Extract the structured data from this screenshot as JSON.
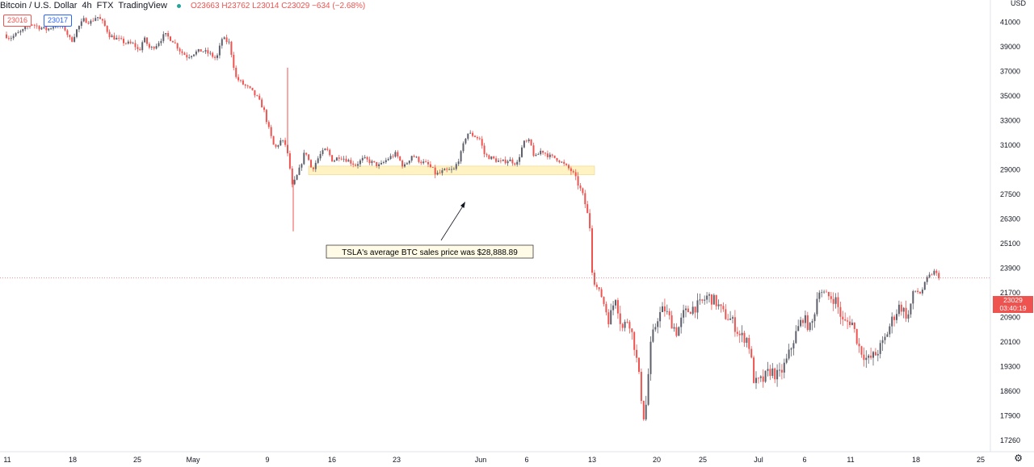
{
  "header": {
    "symbol": "Bitcoin / U.S. Dollar",
    "interval": "4h",
    "exchange": "FTX",
    "source": "TradingView",
    "ohlc": "O23663  H23762  L23014  C23029  −634 (−2.68%)",
    "sell_price": "23016",
    "buy_price": "23017"
  },
  "price_axis": {
    "currency": "USD",
    "last_price": "23029",
    "countdown": "03:40:19",
    "settings_icon": "gear-icon"
  },
  "colors": {
    "up": "#5d606b",
    "down": "#ef5350",
    "zone": "#fff3c4"
  },
  "chart_data": {
    "type": "candlestick",
    "y_ticks": [
      17260,
      17900,
      18600,
      19300,
      20100,
      20900,
      21700,
      23900,
      25100,
      26300,
      27500,
      29000,
      31000,
      33000,
      35000,
      37000,
      39000,
      41000
    ],
    "x_ticks": [
      "11",
      "18",
      "25",
      "May",
      "9",
      "16",
      "23",
      "Jun",
      "6",
      "13",
      "20",
      "25",
      "Jul",
      "6",
      "11",
      "18",
      "25"
    ],
    "close_path": [
      [
        0,
        40300
      ],
      [
        12,
        39700
      ],
      [
        28,
        40300
      ],
      [
        38,
        40900
      ],
      [
        48,
        40600
      ],
      [
        58,
        40400
      ],
      [
        70,
        40800
      ],
      [
        80,
        40500
      ],
      [
        88,
        39400
      ],
      [
        96,
        40500
      ],
      [
        104,
        41200
      ],
      [
        112,
        41000
      ],
      [
        120,
        41500
      ],
      [
        128,
        40900
      ],
      [
        136,
        39900
      ],
      [
        146,
        39600
      ],
      [
        156,
        39300
      ],
      [
        166,
        39200
      ],
      [
        172,
        38600
      ],
      [
        178,
        39700
      ],
      [
        186,
        38800
      ],
      [
        194,
        39200
      ],
      [
        204,
        40000
      ],
      [
        214,
        39500
      ],
      [
        224,
        38600
      ],
      [
        232,
        38200
      ],
      [
        240,
        38500
      ],
      [
        250,
        38700
      ],
      [
        260,
        38400
      ],
      [
        268,
        38000
      ],
      [
        275,
        39700
      ],
      [
        284,
        39300
      ],
      [
        292,
        36500
      ],
      [
        300,
        36000
      ],
      [
        310,
        35500
      ],
      [
        318,
        34900
      ],
      [
        326,
        34000
      ],
      [
        334,
        32000
      ],
      [
        340,
        30700
      ],
      [
        348,
        31400
      ],
      [
        354,
        31000
      ],
      [
        362,
        27900
      ],
      [
        370,
        28900
      ],
      [
        378,
        30600
      ],
      [
        386,
        29000
      ],
      [
        396,
        30200
      ],
      [
        404,
        30700
      ],
      [
        412,
        29700
      ],
      [
        420,
        30100
      ],
      [
        430,
        29800
      ],
      [
        440,
        29400
      ],
      [
        450,
        29900
      ],
      [
        460,
        29600
      ],
      [
        470,
        29300
      ],
      [
        480,
        29900
      ],
      [
        490,
        30300
      ],
      [
        500,
        29200
      ],
      [
        510,
        30200
      ],
      [
        520,
        29700
      ],
      [
        530,
        29400
      ],
      [
        540,
        28700
      ],
      [
        550,
        28900
      ],
      [
        562,
        29000
      ],
      [
        570,
        30200
      ],
      [
        578,
        32000
      ],
      [
        586,
        31800
      ],
      [
        594,
        31500
      ],
      [
        600,
        30200
      ],
      [
        610,
        29900
      ],
      [
        620,
        29600
      ],
      [
        630,
        29800
      ],
      [
        640,
        29500
      ],
      [
        648,
        31200
      ],
      [
        656,
        31300
      ],
      [
        662,
        29900
      ],
      [
        670,
        30600
      ],
      [
        680,
        30100
      ],
      [
        690,
        29900
      ],
      [
        700,
        29300
      ],
      [
        708,
        28900
      ],
      [
        716,
        28100
      ],
      [
        724,
        27100
      ],
      [
        730,
        26000
      ],
      [
        734,
        22900
      ],
      [
        740,
        22000
      ],
      [
        746,
        21500
      ],
      [
        754,
        20800
      ],
      [
        762,
        21600
      ],
      [
        770,
        20500
      ],
      [
        778,
        20900
      ],
      [
        786,
        19900
      ],
      [
        792,
        18800
      ],
      [
        798,
        17700
      ],
      [
        806,
        20100
      ],
      [
        814,
        20900
      ],
      [
        822,
        21200
      ],
      [
        830,
        20800
      ],
      [
        838,
        20400
      ],
      [
        846,
        21000
      ],
      [
        856,
        21200
      ],
      [
        866,
        21300
      ],
      [
        876,
        21600
      ],
      [
        886,
        21400
      ],
      [
        896,
        21000
      ],
      [
        906,
        20800
      ],
      [
        916,
        20300
      ],
      [
        926,
        20200
      ],
      [
        934,
        18800
      ],
      [
        944,
        18900
      ],
      [
        954,
        19200
      ],
      [
        964,
        19000
      ],
      [
        974,
        19500
      ],
      [
        984,
        20300
      ],
      [
        994,
        20900
      ],
      [
        1004,
        20500
      ],
      [
        1014,
        21900
      ],
      [
        1024,
        21600
      ],
      [
        1034,
        21500
      ],
      [
        1044,
        20700
      ],
      [
        1054,
        20800
      ],
      [
        1064,
        19900
      ],
      [
        1074,
        19500
      ],
      [
        1084,
        19700
      ],
      [
        1094,
        20100
      ],
      [
        1104,
        20800
      ],
      [
        1114,
        21300
      ],
      [
        1124,
        20900
      ],
      [
        1132,
        21900
      ],
      [
        1140,
        21700
      ],
      [
        1148,
        23000
      ],
      [
        1156,
        23600
      ],
      [
        1164,
        23029
      ]
    ],
    "support_zone": {
      "from": 28700,
      "to": 29300,
      "start": 382,
      "end": 736
    },
    "annotation": "TSLA's average BTC sales price was $28,888.89",
    "last_price_line": 23029
  }
}
